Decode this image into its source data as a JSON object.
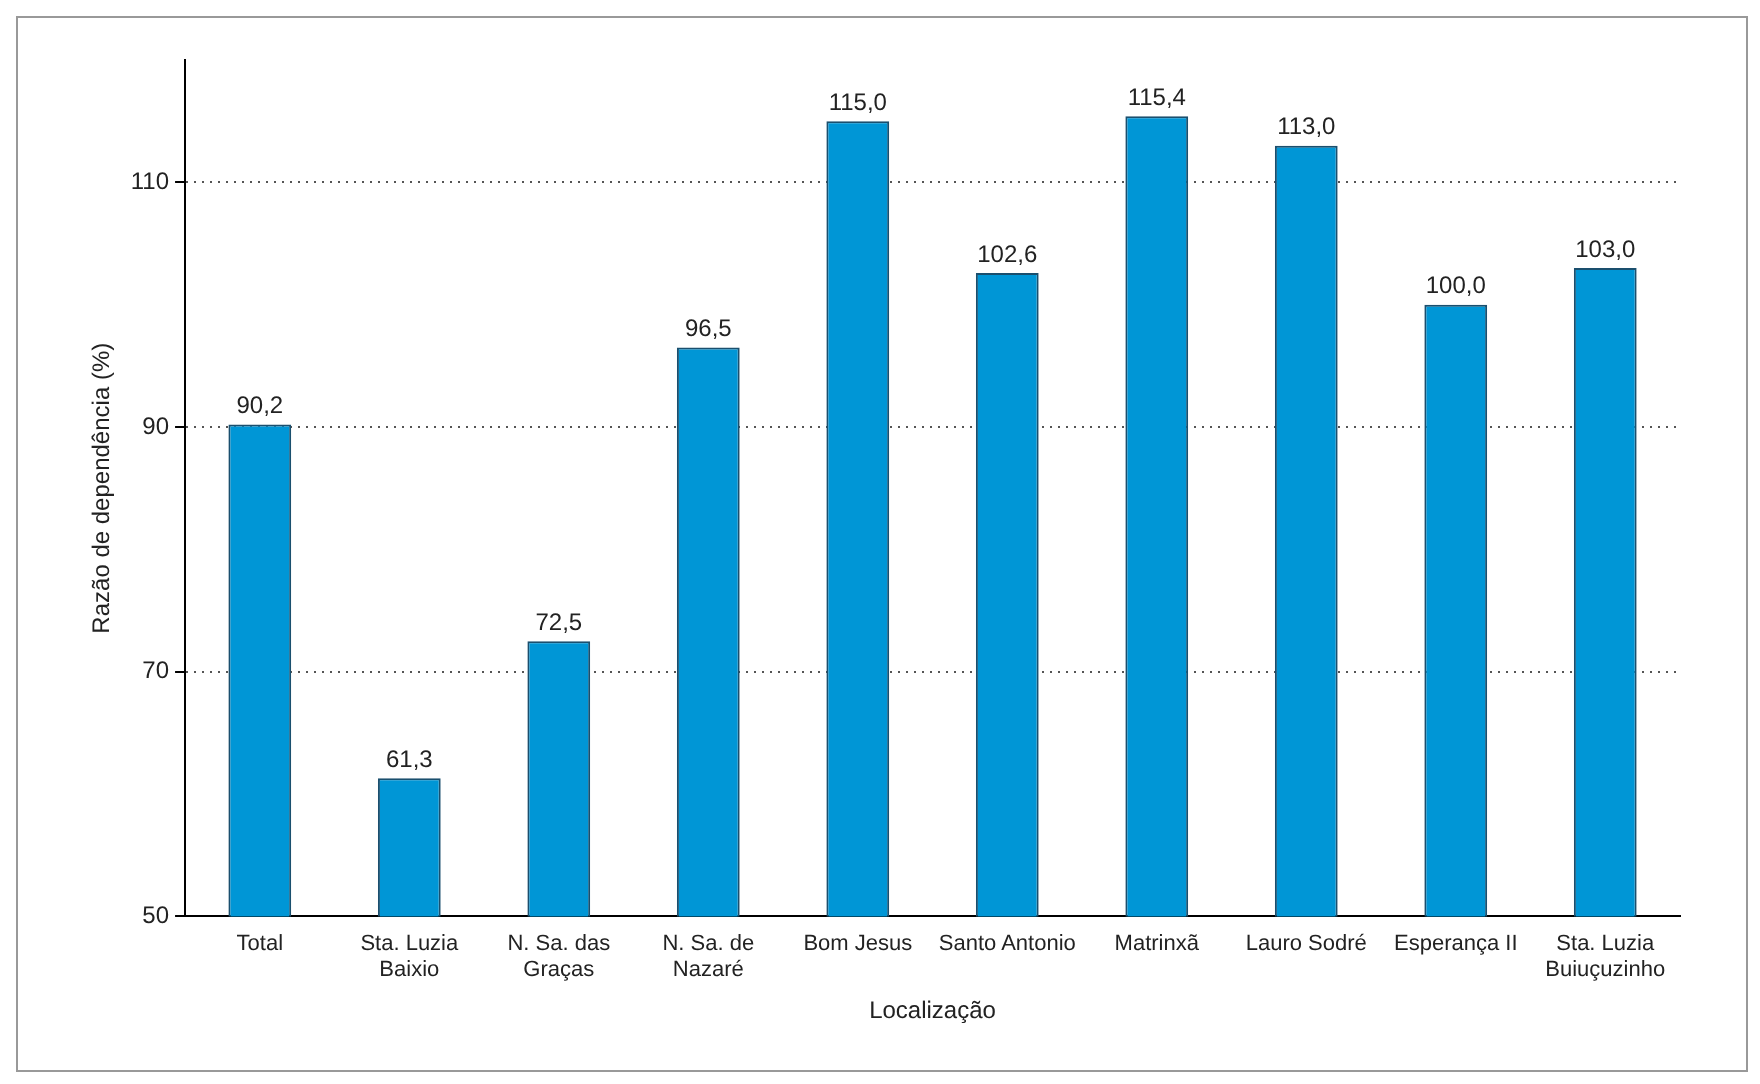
{
  "chart_data": {
    "type": "bar",
    "xlabel": "Localização",
    "ylabel": "Razão de dependência (%)",
    "categories": [
      "Total",
      "Sta. Luzia Baixio",
      "N. Sa. das Graças",
      "N. Sa. de Nazaré",
      "Bom Jesus",
      "Santo Antonio",
      "Matrinxã",
      "Lauro Sodré",
      "Esperança II",
      "Sta. Luzia Buiuçuzinho"
    ],
    "values": [
      90.2,
      61.3,
      72.5,
      96.5,
      115.0,
      102.6,
      115.4,
      113.0,
      100.0,
      103.0
    ],
    "value_labels": [
      "90,2",
      "61,3",
      "72,5",
      "96,5",
      "115,0",
      "102,6",
      "115,4",
      "113,0",
      "100,0",
      "103,0"
    ],
    "color": "#0096d6",
    "ylim": [
      50,
      120
    ],
    "yticks": [
      50,
      70,
      90,
      110
    ],
    "grid": "y",
    "legend": false
  }
}
